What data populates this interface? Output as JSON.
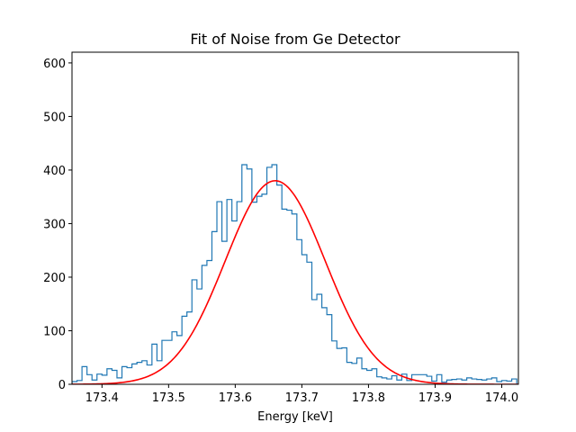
{
  "chart_data": {
    "type": "histogram",
    "title": "Fit of Noise from Ge Detector",
    "xlabel": "Energy [keV]",
    "ylabel": "",
    "xlim": [
      173.355,
      174.025
    ],
    "ylim": [
      0,
      620
    ],
    "grid": false,
    "x_ticks": [
      173.4,
      173.5,
      173.6,
      173.7,
      173.8,
      173.9,
      174.0
    ],
    "x_tick_labels": [
      "173.4",
      "173.5",
      "173.6",
      "173.7",
      "173.8",
      "173.9",
      "174.0"
    ],
    "y_ticks": [
      0,
      100,
      200,
      300,
      400,
      500,
      600
    ],
    "y_tick_labels": [
      "0",
      "100",
      "200",
      "300",
      "400",
      "500",
      "600"
    ],
    "series": [
      {
        "kind": "histogram",
        "color": "#1f77b4",
        "x_start": 173.355,
        "bin_width": 0.0075,
        "counts": [
          5,
          7,
          33,
          18,
          8,
          19,
          17,
          29,
          26,
          12,
          33,
          31,
          38,
          41,
          44,
          36,
          75,
          44,
          82,
          82,
          98,
          91,
          127,
          135,
          195,
          178,
          222,
          231,
          285,
          341,
          267,
          345,
          305,
          341,
          410,
          402,
          340,
          351,
          355,
          405,
          410,
          372,
          327,
          325,
          318,
          270,
          242,
          228,
          158,
          168,
          143,
          130,
          81,
          67,
          68,
          41,
          39,
          49,
          29,
          26,
          29,
          14,
          12,
          10,
          16,
          8,
          19,
          7,
          18,
          18,
          18,
          15,
          6,
          18,
          4,
          8,
          9,
          10,
          8,
          12,
          10,
          9,
          8,
          10,
          12,
          5,
          7,
          6,
          10
        ]
      },
      {
        "kind": "gaussian-fit",
        "color": "#ff0000",
        "amplitude": 380,
        "mean": 173.66,
        "sigma": 0.075
      }
    ]
  }
}
